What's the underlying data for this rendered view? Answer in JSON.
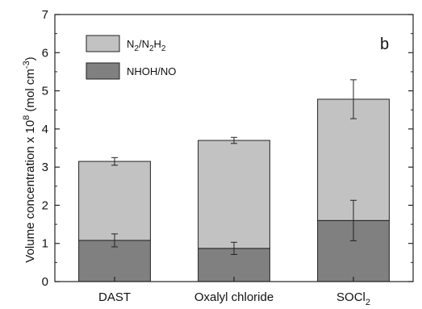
{
  "chart_data": {
    "type": "bar",
    "stacked": true,
    "panel_label": "b",
    "ylabel": {
      "main": "Volume concentration x 10",
      "exp": "8",
      "unit_open": " (mol cm",
      "unit_exp": "-3",
      "unit_close": ")"
    },
    "ylim": [
      0,
      7
    ],
    "yticks": [
      "0",
      "1",
      "2",
      "3",
      "4",
      "5",
      "6",
      "7"
    ],
    "categories": [
      {
        "label": "DAST",
        "sub": ""
      },
      {
        "label": "Oxalyl chloride",
        "sub": ""
      },
      {
        "label": "SOCl",
        "sub": "2"
      }
    ],
    "series": [
      {
        "name": "NHOH/NO",
        "color": "#808080",
        "values": [
          1.08,
          0.87,
          1.6
        ],
        "errors": [
          0.17,
          0.16,
          0.53
        ]
      },
      {
        "name_parts": [
          [
            "N",
            ""
          ],
          [
            "2",
            "sub"
          ],
          [
            "/N",
            ""
          ],
          [
            "2",
            "sub"
          ],
          [
            "H",
            ""
          ],
          [
            "2",
            "sub"
          ]
        ],
        "color": "#c2c2c2",
        "values": [
          2.07,
          2.83,
          3.18
        ],
        "errors": [
          0.1,
          0.08,
          0.51
        ]
      }
    ],
    "legend_position": "top-left",
    "grid": false
  }
}
